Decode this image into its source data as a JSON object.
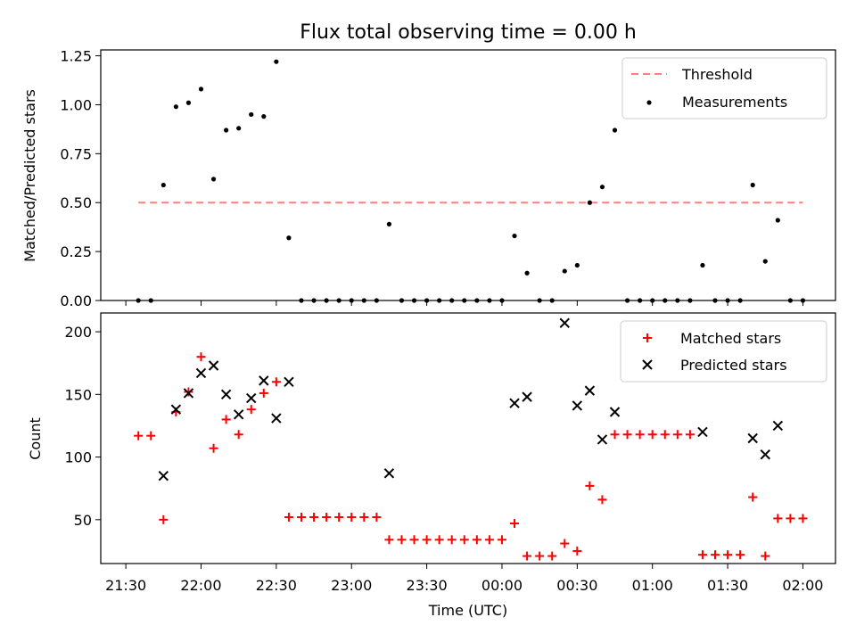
{
  "chart_data": [
    {
      "type": "scatter",
      "title": "Flux total observing time = 0.00 h",
      "xlabel": "",
      "ylabel": "Matched/Predicted stars",
      "xlim": [
        "21:20",
        "02:13"
      ],
      "ylim": [
        0.0,
        1.28
      ],
      "yticks": [
        0.0,
        0.25,
        0.5,
        0.75,
        1.0,
        1.25
      ],
      "ytick_labels": [
        "0.00",
        "0.25",
        "0.50",
        "0.75",
        "1.00",
        "1.25"
      ],
      "legend_position": "top-right",
      "threshold": {
        "name": "Threshold",
        "color": "#ff7f7f",
        "style": "dashed",
        "y": 0.5,
        "x": [
          "21:35",
          "02:00"
        ]
      },
      "series": [
        {
          "name": "Measurements",
          "color": "#000000",
          "marker": "dot",
          "x": [
            "21:35",
            "21:40",
            "21:45",
            "21:50",
            "21:55",
            "22:00",
            "22:05",
            "22:10",
            "22:15",
            "22:20",
            "22:25",
            "22:30",
            "22:35",
            "22:40",
            "22:45",
            "22:50",
            "22:55",
            "23:00",
            "23:05",
            "23:10",
            "23:15",
            "23:20",
            "23:25",
            "23:30",
            "23:35",
            "23:40",
            "23:45",
            "23:50",
            "23:55",
            "00:00",
            "00:05",
            "00:10",
            "00:15",
            "00:20",
            "00:25",
            "00:30",
            "00:35",
            "00:40",
            "00:45",
            "00:50",
            "00:55",
            "01:00",
            "01:05",
            "01:10",
            "01:15",
            "01:20",
            "01:25",
            "01:30",
            "01:35",
            "01:40",
            "01:45",
            "01:50",
            "01:55",
            "02:00"
          ],
          "y": [
            0.0,
            0.0,
            0.59,
            0.99,
            1.01,
            1.08,
            0.62,
            0.87,
            0.88,
            0.95,
            0.94,
            1.22,
            0.32,
            0.0,
            0.0,
            0.0,
            0.0,
            0.0,
            0.0,
            0.0,
            0.39,
            0.0,
            0.0,
            0.0,
            0.0,
            0.0,
            0.0,
            0.0,
            0.0,
            0.0,
            0.33,
            0.14,
            0.0,
            0.0,
            0.15,
            0.18,
            0.5,
            0.58,
            0.87,
            0.0,
            0.0,
            0.0,
            0.0,
            0.0,
            0.0,
            0.18,
            0.0,
            0.0,
            0.0,
            0.59,
            0.2,
            0.41,
            0.0,
            0.0
          ]
        }
      ]
    },
    {
      "type": "scatter",
      "title": "",
      "xlabel": "Time (UTC)",
      "ylabel": "Count",
      "xlim": [
        "21:20",
        "02:13"
      ],
      "ylim": [
        15,
        215
      ],
      "yticks": [
        50,
        100,
        150,
        200
      ],
      "ytick_labels": [
        "50",
        "100",
        "150",
        "200"
      ],
      "xticks": [
        "21:30",
        "22:00",
        "22:30",
        "23:00",
        "23:30",
        "00:00",
        "00:30",
        "01:00",
        "01:30",
        "02:00"
      ],
      "legend_position": "top-right",
      "series": [
        {
          "name": "Matched stars",
          "color": "#ff0000",
          "marker": "plus",
          "x": [
            "21:35",
            "21:40",
            "21:45",
            "21:50",
            "21:55",
            "22:00",
            "22:05",
            "22:10",
            "22:15",
            "22:20",
            "22:25",
            "22:30",
            "22:35",
            "22:40",
            "22:45",
            "22:50",
            "22:55",
            "23:00",
            "23:05",
            "23:10",
            "23:15",
            "23:20",
            "23:25",
            "23:30",
            "23:35",
            "23:40",
            "23:45",
            "23:50",
            "23:55",
            "00:00",
            "00:05",
            "00:10",
            "00:15",
            "00:20",
            "00:25",
            "00:30",
            "00:35",
            "00:40",
            "00:45",
            "00:50",
            "00:55",
            "01:00",
            "01:05",
            "01:10",
            "01:15",
            "01:20",
            "01:25",
            "01:30",
            "01:35",
            "01:40",
            "01:45",
            "01:50",
            "01:55",
            "02:00"
          ],
          "y": [
            117,
            117,
            50,
            136,
            152,
            180,
            107,
            130,
            118,
            138,
            151,
            160,
            52,
            52,
            52,
            52,
            52,
            52,
            52,
            52,
            34,
            34,
            34,
            34,
            34,
            34,
            34,
            34,
            34,
            34,
            47,
            21,
            21,
            21,
            31,
            25,
            77,
            66,
            118,
            118,
            118,
            118,
            118,
            118,
            118,
            22,
            22,
            22,
            22,
            68,
            21,
            51,
            51,
            51
          ]
        },
        {
          "name": "Predicted stars",
          "color": "#000000",
          "marker": "x",
          "x": [
            "21:45",
            "21:50",
            "21:55",
            "22:00",
            "22:05",
            "22:10",
            "22:15",
            "22:20",
            "22:25",
            "22:30",
            "22:35",
            "23:15",
            "00:05",
            "00:10",
            "00:25",
            "00:30",
            "00:35",
            "00:40",
            "00:45",
            "01:20",
            "01:40",
            "01:45",
            "01:50"
          ],
          "y": [
            85,
            138,
            151,
            167,
            173,
            150,
            134,
            147,
            161,
            131,
            160,
            87,
            143,
            148,
            207,
            141,
            153,
            114,
            136,
            120,
            115,
            102,
            125
          ]
        }
      ]
    }
  ]
}
